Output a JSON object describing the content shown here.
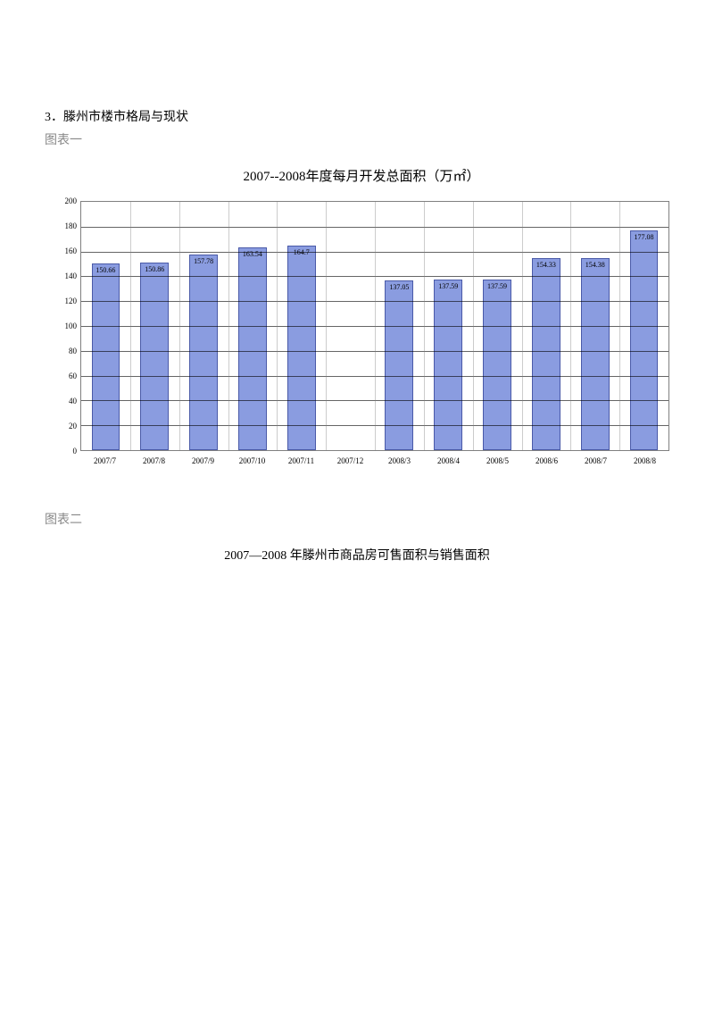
{
  "heading": "3．滕州市楼市格局与现状",
  "caption1": "图表一",
  "caption2": "图表二",
  "chart1": {
    "type": "bar",
    "title": "2007--2008年度每月开发总面积（万㎡）",
    "title_fontsize": 15,
    "label_fontsize": 9,
    "bar_label_fontsize": 8,
    "categories": [
      "2007/7",
      "2007/8",
      "2007/9",
      "2007/10",
      "2007/11",
      "2007/12",
      "2008/3",
      "2008/4",
      "2008/5",
      "2008/6",
      "2008/7",
      "2008/8"
    ],
    "values": [
      150.66,
      150.86,
      157.78,
      163.54,
      164.7,
      null,
      137.05,
      137.59,
      137.59,
      154.33,
      154.38,
      177.08
    ],
    "value_labels": [
      "150.66",
      "150.86",
      "157.78",
      "163.54",
      "164.7",
      "",
      "137.05",
      "137.59",
      "137.59",
      "154.33",
      "154.38",
      "177.08"
    ],
    "ylim": [
      0,
      200
    ],
    "ytick_step": 20,
    "yticks": [
      0,
      20,
      40,
      60,
      80,
      100,
      120,
      140,
      160,
      180,
      200
    ],
    "bar_color": "#8a9ce0",
    "bar_border_color": "#4a5aa8",
    "background_color": "#ffffff",
    "grid_color": "#000000",
    "axis_color": "#808080",
    "bar_width": 0.58
  },
  "chart2": {
    "title": "2007―2008 年滕州市商品房可售面积与销售面积",
    "title_fontsize": 14
  },
  "colors": {
    "text": "#000000",
    "muted": "#888888",
    "page_bg": "#ffffff"
  }
}
